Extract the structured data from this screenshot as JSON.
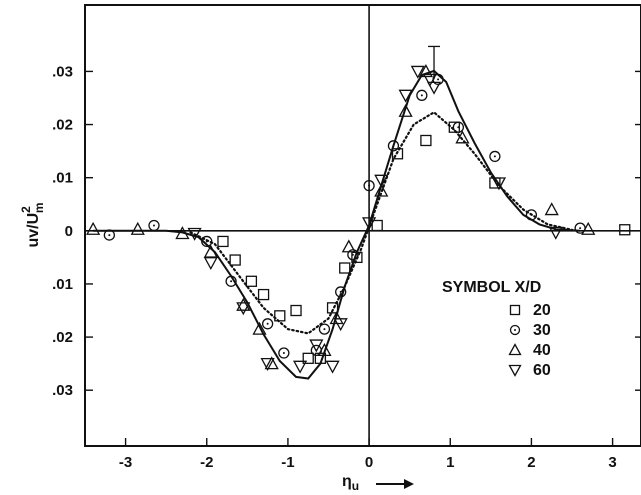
{
  "chart_data": {
    "type": "scatter",
    "xlabel": "η",
    "xlabel_sub": "u",
    "ylabel": "uv/U",
    "ylabel_sup": "2",
    "ylabel_sub": "m",
    "xlim": [
      -3.5,
      3.35
    ],
    "ylim": [
      -0.0405,
      0.0425
    ],
    "x_ticks": [
      -3,
      -2,
      -1,
      0,
      1,
      2,
      3
    ],
    "x_tick_labels": [
      "-3",
      "-2",
      "-1",
      "0",
      "1",
      "2",
      "3"
    ],
    "y_ticks": [
      0.03,
      0.02,
      0.01,
      0,
      -0.01,
      -0.02,
      -0.03
    ],
    "y_tick_labels": [
      ".03",
      ".02",
      ".01",
      "0",
      ".01",
      ".02",
      ".03"
    ],
    "grid": false,
    "legend": {
      "title": "SYMBOL X/D",
      "placement": "bottom-right",
      "entries": [
        {
          "label": "20",
          "marker": "square"
        },
        {
          "label": "30",
          "marker": "circle"
        },
        {
          "label": "40",
          "marker": "triangle-up"
        },
        {
          "label": "60",
          "marker": "triangle-down"
        }
      ]
    },
    "series": [
      {
        "marker": "square",
        "label": "20",
        "points": [
          [
            -1.8,
            -0.002
          ],
          [
            -1.65,
            -0.0055
          ],
          [
            -1.45,
            -0.0095
          ],
          [
            -1.3,
            -0.012
          ],
          [
            -1.1,
            -0.016
          ],
          [
            -0.9,
            -0.015
          ],
          [
            -0.75,
            -0.024
          ],
          [
            -0.6,
            -0.024
          ],
          [
            -0.45,
            -0.0145
          ],
          [
            -0.3,
            -0.007
          ],
          [
            -0.15,
            -0.005
          ],
          [
            0.1,
            0.001
          ],
          [
            0.35,
            0.0145
          ],
          [
            0.7,
            0.017
          ],
          [
            1.05,
            0.0195
          ],
          [
            1.55,
            0.009
          ],
          [
            3.15,
            0.0002
          ]
        ]
      },
      {
        "marker": "circle",
        "label": "30",
        "points": [
          [
            -3.2,
            -0.0008
          ],
          [
            -2.65,
            0.001
          ],
          [
            -2.0,
            -0.002
          ],
          [
            -1.7,
            -0.0095
          ],
          [
            -1.25,
            -0.0175
          ],
          [
            -1.05,
            -0.023
          ],
          [
            -0.65,
            -0.0225
          ],
          [
            -0.55,
            -0.0185
          ],
          [
            -0.35,
            -0.0115
          ],
          [
            -0.2,
            -0.0045
          ],
          [
            0.0,
            0.0085
          ],
          [
            0.3,
            0.016
          ],
          [
            0.65,
            0.0255
          ],
          [
            0.85,
            0.0285
          ],
          [
            1.1,
            0.0195
          ],
          [
            1.55,
            0.014
          ],
          [
            2.0,
            0.003
          ],
          [
            2.6,
            0.0005
          ]
        ]
      },
      {
        "marker": "triangle-up",
        "label": "40",
        "points": [
          [
            -3.4,
            0.0003
          ],
          [
            -2.85,
            0.0003
          ],
          [
            -2.3,
            -0.0005
          ],
          [
            -1.95,
            -0.004
          ],
          [
            -1.55,
            -0.014
          ],
          [
            -1.35,
            -0.0185
          ],
          [
            -1.2,
            -0.025
          ],
          [
            -0.55,
            -0.0225
          ],
          [
            -0.4,
            -0.0165
          ],
          [
            -0.25,
            -0.003
          ],
          [
            0.15,
            0.0075
          ],
          [
            0.45,
            0.0225
          ],
          [
            0.7,
            0.03
          ],
          [
            1.15,
            0.0175
          ],
          [
            2.25,
            0.004
          ],
          [
            2.7,
            0.0003
          ]
        ]
      },
      {
        "marker": "triangle-down",
        "label": "60",
        "points": [
          [
            -2.15,
            -0.0005
          ],
          [
            -1.95,
            -0.006
          ],
          [
            -1.55,
            -0.0145
          ],
          [
            -1.25,
            -0.025
          ],
          [
            -0.85,
            -0.0255
          ],
          [
            -0.65,
            -0.0215
          ],
          [
            -0.45,
            -0.0255
          ],
          [
            -0.35,
            -0.0175
          ],
          [
            0.0,
            0.0015
          ],
          [
            0.15,
            0.0095
          ],
          [
            0.45,
            0.0255
          ],
          [
            0.6,
            0.03
          ],
          [
            0.75,
            0.0285
          ],
          [
            0.8,
            0.027
          ],
          [
            1.6,
            0.009
          ],
          [
            2.3,
            -0.0003
          ]
        ]
      }
    ],
    "curves": [
      {
        "style": "solid",
        "points": [
          [
            -3.4,
            0.0
          ],
          [
            -2.5,
            0.0
          ],
          [
            -2.3,
            -0.0003
          ],
          [
            -2.1,
            -0.0012
          ],
          [
            -1.9,
            -0.004
          ],
          [
            -1.7,
            -0.0085
          ],
          [
            -1.5,
            -0.0135
          ],
          [
            -1.3,
            -0.0195
          ],
          [
            -1.1,
            -0.0245
          ],
          [
            -0.9,
            -0.0275
          ],
          [
            -0.75,
            -0.0278
          ],
          [
            -0.6,
            -0.025
          ],
          [
            -0.45,
            -0.0185
          ],
          [
            -0.3,
            -0.0105
          ],
          [
            -0.15,
            -0.004
          ],
          [
            0.0,
            0.001
          ],
          [
            0.1,
            0.006
          ],
          [
            0.3,
            0.016
          ],
          [
            0.5,
            0.0255
          ],
          [
            0.65,
            0.0293
          ],
          [
            0.8,
            0.0301
          ],
          [
            0.95,
            0.028
          ],
          [
            1.1,
            0.0225
          ],
          [
            1.3,
            0.0165
          ],
          [
            1.5,
            0.011
          ],
          [
            1.7,
            0.0065
          ],
          [
            1.9,
            0.003
          ],
          [
            2.1,
            0.0012
          ],
          [
            2.3,
            0.0003
          ],
          [
            2.6,
            0.0
          ]
        ]
      },
      {
        "style": "dotted",
        "points": [
          [
            -2.2,
            -0.0003
          ],
          [
            -1.9,
            -0.0025
          ],
          [
            -1.6,
            -0.0085
          ],
          [
            -1.3,
            -0.0145
          ],
          [
            -1.0,
            -0.0185
          ],
          [
            -0.75,
            -0.0193
          ],
          [
            -0.5,
            -0.0165
          ],
          [
            -0.3,
            -0.0105
          ],
          [
            -0.1,
            -0.0035
          ],
          [
            0.1,
            0.005
          ],
          [
            0.3,
            0.0135
          ],
          [
            0.55,
            0.02
          ],
          [
            0.8,
            0.0223
          ],
          [
            1.05,
            0.019
          ],
          [
            1.3,
            0.0145
          ],
          [
            1.6,
            0.0085
          ],
          [
            1.9,
            0.004
          ],
          [
            2.2,
            0.0012
          ],
          [
            2.5,
            0.0002
          ]
        ]
      }
    ],
    "error_bar": {
      "x": 0.8,
      "y_low": 0.0285,
      "y_high": 0.0347
    }
  }
}
